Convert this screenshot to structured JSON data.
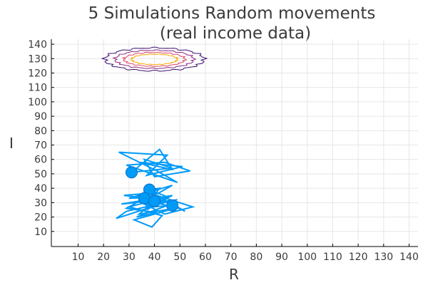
{
  "chart_data": {
    "type": "line",
    "title": "5 Simulations Random movements",
    "subtitle": "(real income data)",
    "xlabel": "R",
    "ylabel": "I",
    "xlim": [
      -0.5,
      143.5
    ],
    "ylim": [
      -0.5,
      143.5
    ],
    "xticks": [
      10,
      20,
      30,
      40,
      50,
      60,
      70,
      80,
      90,
      100,
      110,
      120,
      130,
      140
    ],
    "yticks": [
      10,
      20,
      30,
      40,
      50,
      60,
      70,
      80,
      90,
      100,
      110,
      120,
      130,
      140
    ],
    "grid": true,
    "legend": "none",
    "colors": {
      "trajectory": "#009AF9",
      "contour_levels": [
        "#3B0F70",
        "#8C2981",
        "#DE4968",
        "#FE9F6D",
        "#F6A600"
      ]
    },
    "contours": [
      {
        "level": 1,
        "color": "#3B0F70",
        "cx": 40,
        "cy": 129.5,
        "rx": 19.5,
        "ry": 8.0,
        "jitter": 1.2
      },
      {
        "level": 2,
        "color": "#8C2981",
        "cx": 40,
        "cy": 129.5,
        "rx": 15.5,
        "ry": 6.3,
        "jitter": 0.9
      },
      {
        "level": 3,
        "color": "#DE4968",
        "cx": 40,
        "cy": 129.5,
        "rx": 12.0,
        "ry": 4.8,
        "jitter": 0.7
      },
      {
        "level": 4,
        "color": "#F6A600",
        "cx": 40,
        "cy": 129.5,
        "rx": 9.0,
        "ry": 3.6,
        "jitter": 0.5
      }
    ],
    "series": [
      {
        "values": [
          [
            31,
            51
          ],
          [
            42,
            67
          ],
          [
            47,
            53
          ],
          [
            34,
            58
          ],
          [
            51,
            55
          ],
          [
            37,
            49
          ],
          [
            45,
            63
          ],
          [
            26,
            65
          ],
          [
            41,
            52
          ],
          [
            49,
            44
          ],
          [
            29,
            56
          ],
          [
            44,
            58
          ],
          [
            54,
            52
          ],
          [
            40,
            48
          ],
          [
            36,
            60
          ],
          [
            47,
            54
          ],
          [
            31,
            51
          ]
        ],
        "end": [
          31,
          51
        ]
      },
      {
        "values": [
          [
            38,
            39
          ],
          [
            45,
            34
          ],
          [
            30,
            33
          ],
          [
            47,
            42
          ],
          [
            35,
            30
          ],
          [
            41,
            37
          ],
          [
            28,
            35
          ],
          [
            46,
            31
          ],
          [
            37,
            28
          ],
          [
            42,
            40
          ],
          [
            38,
            39
          ]
        ],
        "end": [
          38,
          39
        ]
      },
      {
        "values": [
          [
            36,
            33
          ],
          [
            29,
            26
          ],
          [
            41,
            23
          ],
          [
            33,
            20
          ],
          [
            45,
            28
          ],
          [
            38,
            31
          ],
          [
            27,
            29
          ],
          [
            47,
            35
          ],
          [
            35,
            24
          ],
          [
            42,
            30
          ],
          [
            36,
            33
          ]
        ],
        "end": [
          36,
          33
        ]
      },
      {
        "values": [
          [
            40,
            31
          ],
          [
            34,
            22
          ],
          [
            48,
            26
          ],
          [
            32,
            18
          ],
          [
            39,
            13
          ],
          [
            43,
            21
          ],
          [
            30,
            27
          ],
          [
            45,
            34
          ],
          [
            37,
            25
          ],
          [
            40,
            31
          ]
        ],
        "end": [
          40,
          31
        ]
      },
      {
        "values": [
          [
            47,
            28
          ],
          [
            52,
            24
          ],
          [
            41,
            35
          ],
          [
            55,
            27
          ],
          [
            44,
            22
          ],
          [
            36,
            29
          ],
          [
            49,
            32
          ],
          [
            29,
            24
          ],
          [
            25,
            19
          ],
          [
            39,
            27
          ],
          [
            47,
            28
          ]
        ],
        "end": [
          47,
          28
        ]
      }
    ]
  }
}
